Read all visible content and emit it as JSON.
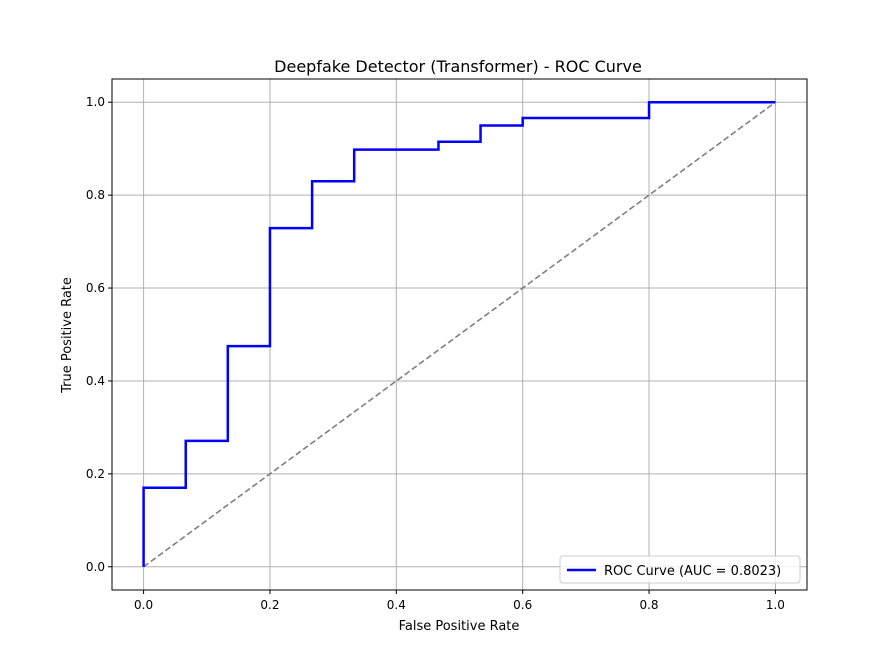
{
  "chart_data": {
    "type": "line",
    "title": "Deepfake Detector (Transformer) - ROC Curve",
    "xlabel": "False Positive Rate",
    "ylabel": "True Positive Rate",
    "xlim": [
      -0.05,
      1.05
    ],
    "ylim": [
      -0.05,
      1.05
    ],
    "xticks": [
      0.0,
      0.2,
      0.4,
      0.6,
      0.8,
      1.0
    ],
    "xtick_labels": [
      "0.0",
      "0.2",
      "0.4",
      "0.6",
      "0.8",
      "1.0"
    ],
    "yticks": [
      0.0,
      0.2,
      0.4,
      0.6,
      0.8,
      1.0
    ],
    "ytick_labels": [
      "0.0",
      "0.2",
      "0.4",
      "0.6",
      "0.8",
      "1.0"
    ],
    "grid": true,
    "legend_position": "lower-right",
    "series": [
      {
        "name": "ROC Curve (AUC = 0.8023)",
        "color": "#0000ff",
        "style": "solid",
        "x": [
          0.0,
          0.0,
          0.0667,
          0.0667,
          0.1333,
          0.1333,
          0.2,
          0.2,
          0.2667,
          0.2667,
          0.3333,
          0.3333,
          0.4667,
          0.4667,
          0.5333,
          0.5333,
          0.6,
          0.6,
          0.8,
          0.8,
          1.0
        ],
        "y": [
          0.0,
          0.17,
          0.17,
          0.271,
          0.271,
          0.475,
          0.475,
          0.729,
          0.729,
          0.83,
          0.83,
          0.898,
          0.898,
          0.915,
          0.915,
          0.95,
          0.95,
          0.966,
          0.966,
          1.0,
          1.0
        ]
      },
      {
        "color": "#808080",
        "style": "dashed",
        "x": [
          0.0,
          1.0
        ],
        "y": [
          0.0,
          1.0
        ]
      }
    ]
  }
}
